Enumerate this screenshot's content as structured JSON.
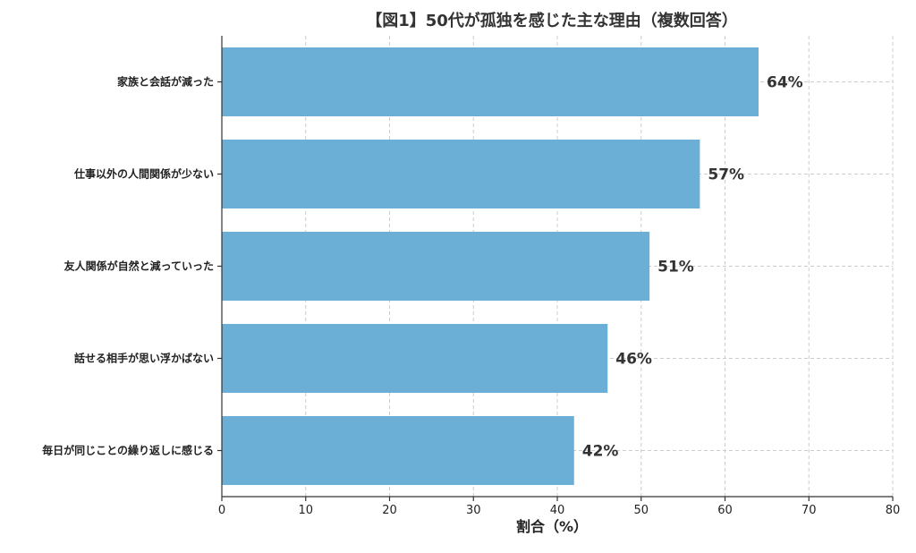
{
  "chart_data": {
    "type": "bar",
    "orientation": "horizontal",
    "title": "【図1】50代が孤独を感じた主な理由（複数回答）",
    "xlabel": "割合（%）",
    "ylabel": "",
    "categories": [
      "家族と会話が減った",
      "仕事以外の人間関係が少ない",
      "友人関係が自然と減っていった",
      "話せる相手が思い浮かばない",
      "毎日が同じことの繰り返しに感じる"
    ],
    "values": [
      64,
      57,
      51,
      46,
      42
    ],
    "data_labels": [
      "64%",
      "57%",
      "51%",
      "46%",
      "42%"
    ],
    "xlim": [
      0,
      80
    ],
    "xticks": [
      "0",
      "10",
      "20",
      "30",
      "40",
      "50",
      "60",
      "70",
      "80"
    ],
    "grid": true,
    "bar_color": "#6baed6"
  }
}
